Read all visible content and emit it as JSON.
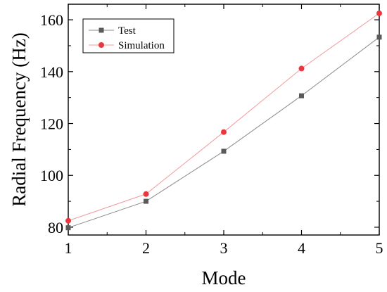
{
  "chart_data": {
    "type": "line",
    "title": "",
    "xlabel": "Mode",
    "ylabel": "Radial Frequency (Hz)",
    "x": [
      1,
      2,
      3,
      4,
      5
    ],
    "xlim": [
      1,
      5
    ],
    "ylim": [
      77,
      166
    ],
    "xticks": [
      "1",
      "2",
      "3",
      "4",
      "5"
    ],
    "yticks": [
      80,
      100,
      120,
      140,
      160
    ],
    "grid": false,
    "legend_position": "top-left",
    "series": [
      {
        "name": "Test",
        "values": [
          79.8,
          90.0,
          109.3,
          130.7,
          153.3
        ],
        "color": "#5a5a5a",
        "marker": "square"
      },
      {
        "name": "Simulation",
        "values": [
          82.5,
          92.8,
          116.7,
          141.2,
          162.5
        ],
        "color": "#e8383d",
        "marker": "circle"
      }
    ]
  }
}
